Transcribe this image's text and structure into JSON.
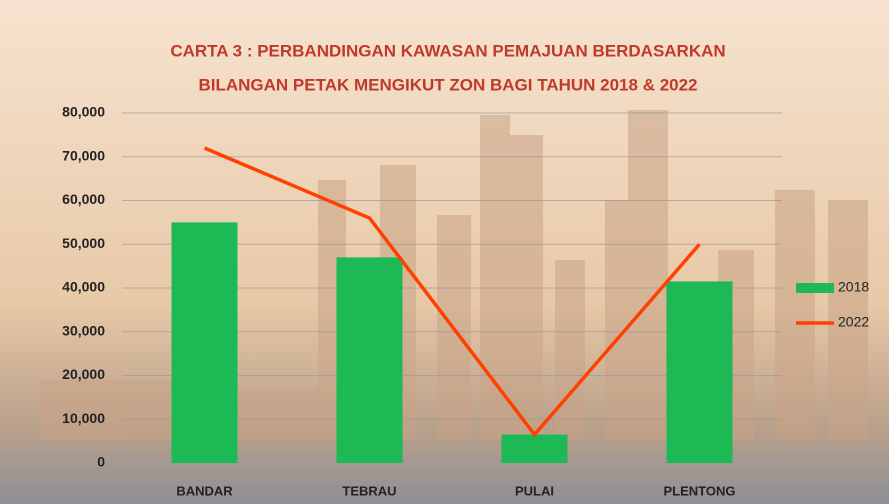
{
  "chart_data": {
    "type": "bar",
    "title": [
      "CARTA 3 : PERBANDINGAN KAWASAN PEMAJUAN BERDASARKAN",
      "BILANGAN PETAK MENGIKUT ZON BAGI TAHUN 2018 & 2022"
    ],
    "categories": [
      "BANDAR",
      "TEBRAU",
      "PULAI",
      "PLENTONG"
    ],
    "series": [
      {
        "name": "2018",
        "type": "bar",
        "color": "#1db954",
        "values": [
          55000,
          47000,
          6500,
          41500
        ]
      },
      {
        "name": "2022",
        "type": "line",
        "color": "#ff4000",
        "values": [
          72000,
          56000,
          6500,
          50000
        ]
      }
    ],
    "ylim": [
      0,
      80000
    ],
    "yticks": [
      0,
      {
        "value": 10000,
        "label": "10,000"
      },
      {
        "value": 20000,
        "label": "20,000"
      },
      {
        "value": 30000,
        "label": "30,000"
      },
      {
        "value": 40000,
        "label": "40,000"
      },
      {
        "value": 50000,
        "label": "50,000"
      },
      {
        "value": 60000,
        "label": "60,000"
      },
      {
        "value": 70000,
        "label": "70,000"
      },
      {
        "value": 80000,
        "label": "80,000"
      }
    ],
    "grid": true,
    "legend": "right"
  }
}
